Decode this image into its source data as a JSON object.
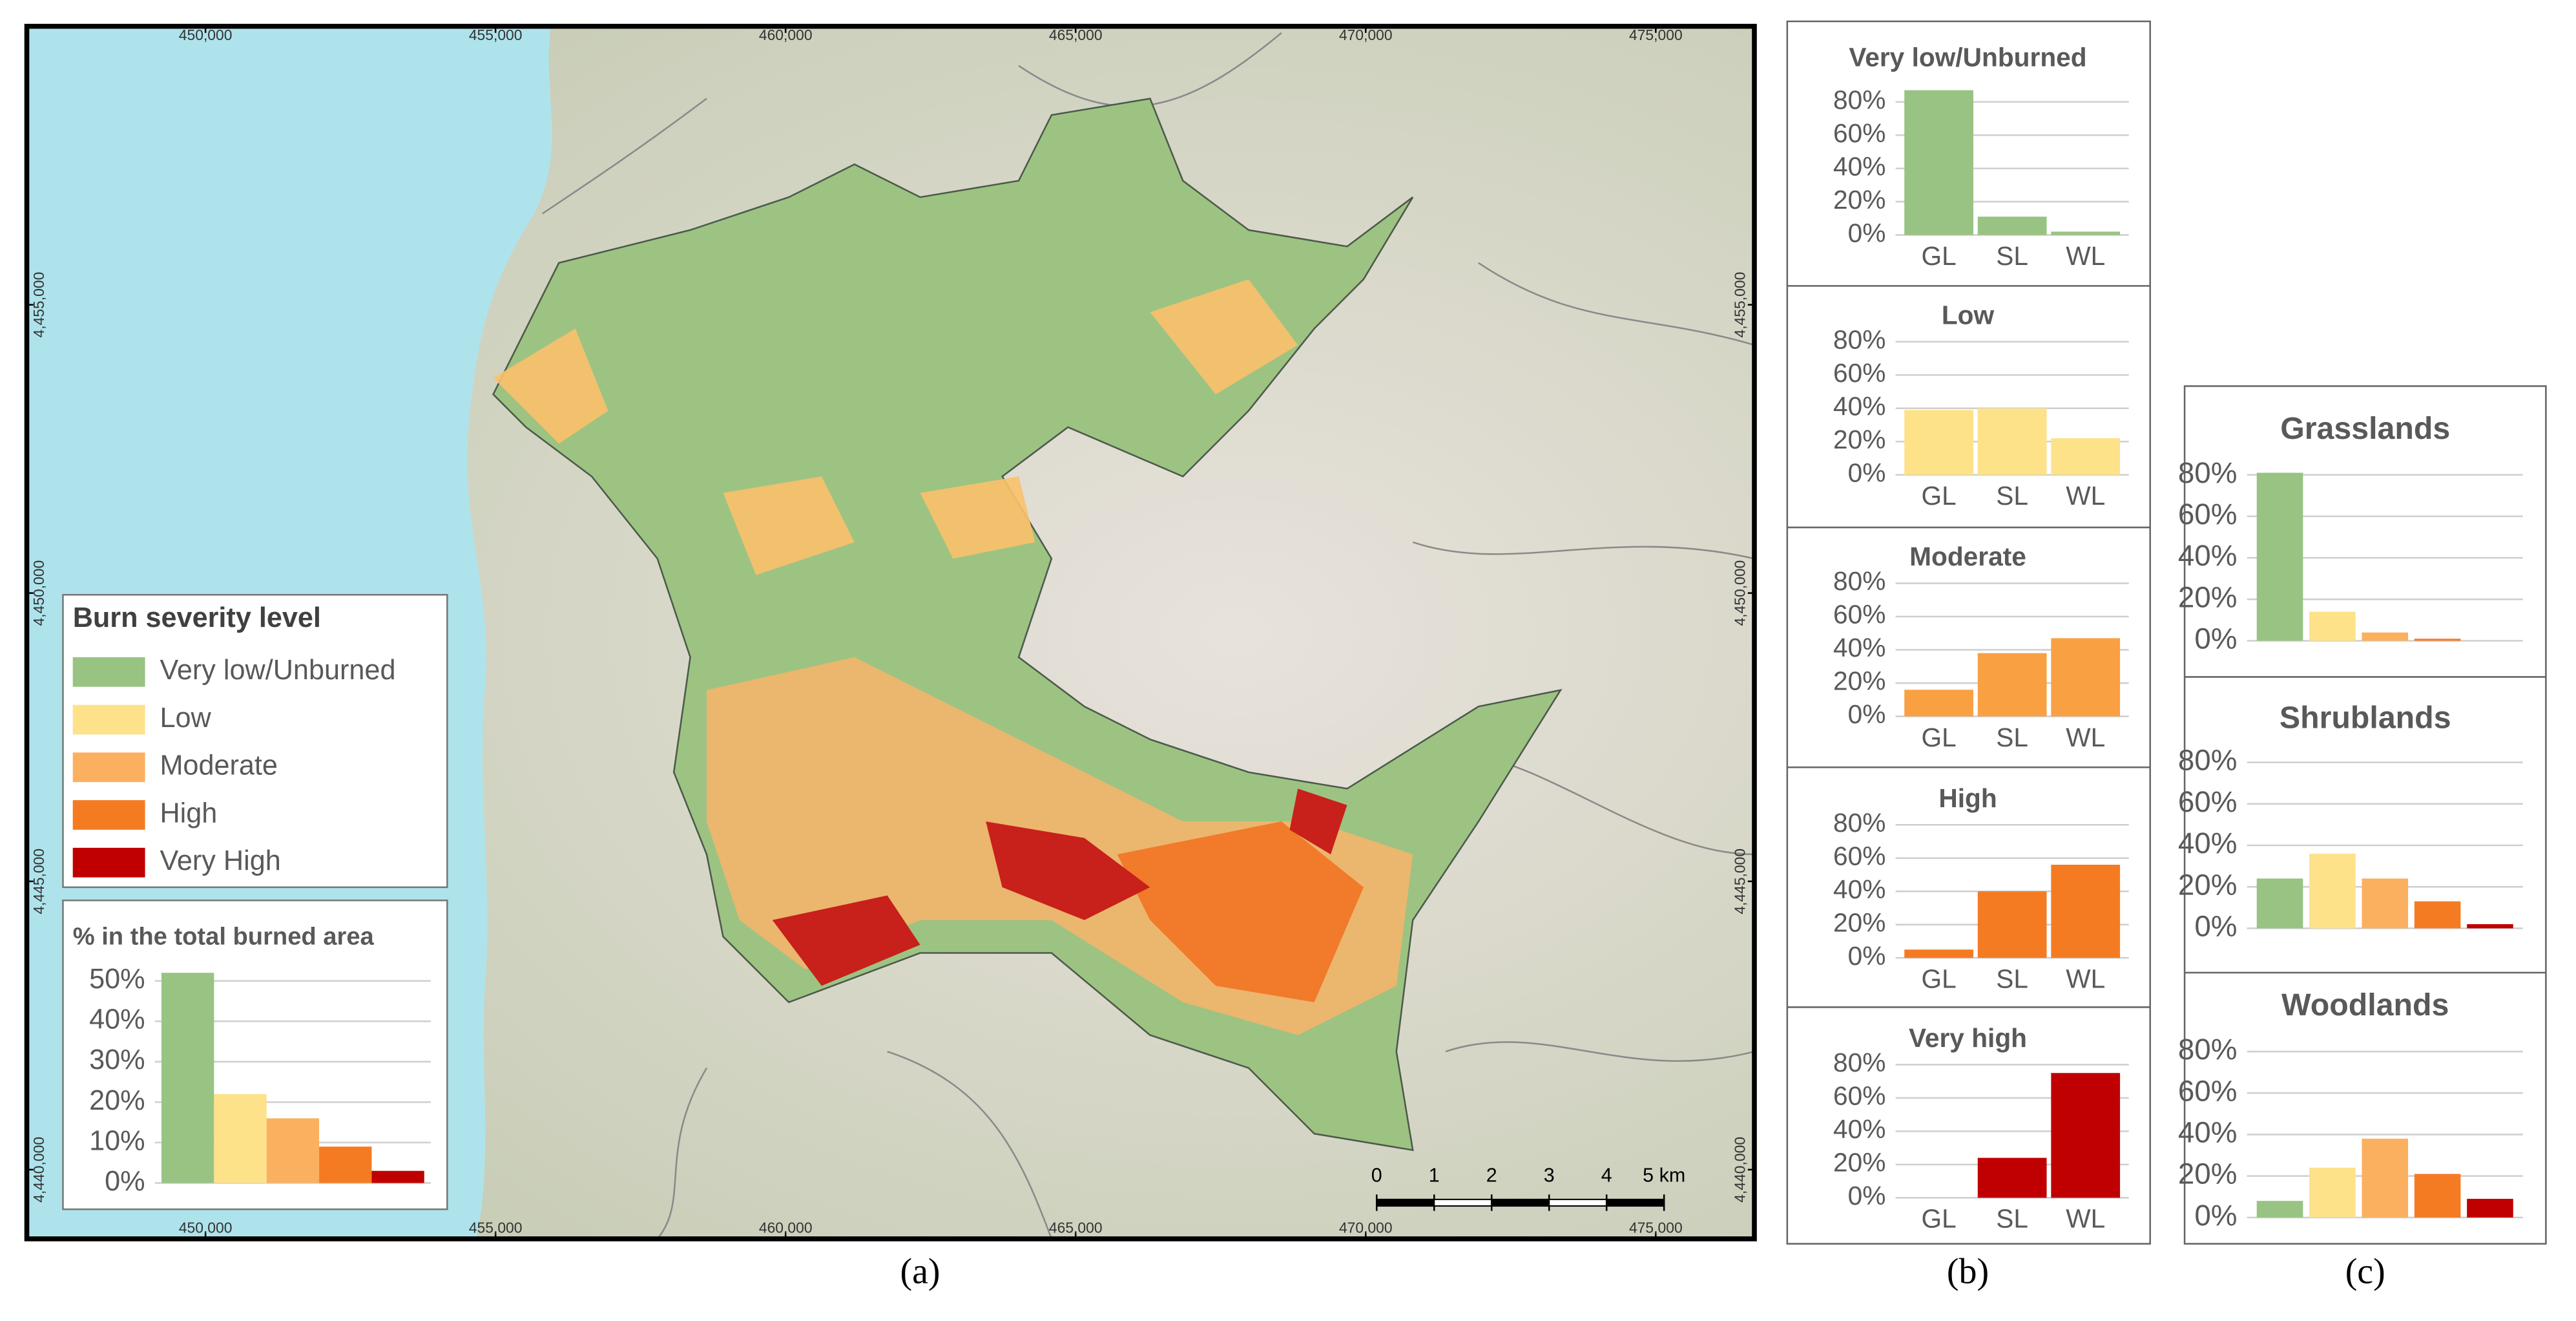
{
  "map": {
    "xlim": [
      446920,
      476700
    ],
    "ylim": [
      4438800,
      4459830
    ],
    "xticks": [
      {
        "value": 450000,
        "label": "450,000"
      },
      {
        "value": 455000,
        "label": "455,000"
      },
      {
        "value": 460000,
        "label": "460,000"
      },
      {
        "value": 465000,
        "label": "465,000"
      },
      {
        "value": 470000,
        "label": "470,000"
      },
      {
        "value": 475000,
        "label": "475,000"
      }
    ],
    "yticks": [
      {
        "value": 4440000,
        "label": "4,440,000"
      },
      {
        "value": 4445000,
        "label": "4,445,000"
      },
      {
        "value": 4450000,
        "label": "4,450,000"
      },
      {
        "value": 4455000,
        "label": "4,455,000"
      }
    ],
    "legend": {
      "title": "Burn severity level",
      "items": [
        "Very low/Unburned",
        "Low",
        "Moderate",
        "High",
        "Very High"
      ],
      "colors": [
        "#98c383",
        "#fde28a",
        "#fbb060",
        "#f57b22",
        "#c00000"
      ]
    },
    "scale_bar": {
      "ticks": [
        0,
        1,
        2,
        3,
        4,
        {
          "value": 5,
          "label": "5 km"
        }
      ]
    }
  },
  "chart_data": [
    {
      "type": "bar",
      "title": "% in the total burned area",
      "categories": [
        null,
        null,
        null,
        null,
        null
      ],
      "values": [
        52,
        22,
        16,
        9,
        3
      ],
      "colors": [
        "#98c383",
        "#fde28a",
        "#fbb060",
        "#f57b22",
        "#c00000"
      ],
      "ylim": [
        0,
        54
      ],
      "yticks": [
        {
          "value": 0,
          "label": "0%"
        },
        {
          "value": 10,
          "label": "10%"
        },
        {
          "value": 20,
          "label": "20%"
        },
        {
          "value": 30,
          "label": "30%"
        },
        {
          "value": 40,
          "label": "40%"
        },
        {
          "value": 50,
          "label": "50%"
        }
      ],
      "grid": true
    },
    {
      "type": "bar",
      "title": "Very low/Unburned",
      "categories": [
        "GL",
        "SL",
        "WL"
      ],
      "values": [
        87,
        11,
        2
      ],
      "color": "#98c383",
      "ylim": [
        0,
        90
      ],
      "yticks": [
        {
          "value": 0,
          "label": "0%"
        },
        {
          "value": 20,
          "label": "20%"
        },
        {
          "value": 40,
          "label": "40%"
        },
        {
          "value": 60,
          "label": "60%"
        },
        {
          "value": 80,
          "label": "80%"
        }
      ],
      "grid": true
    },
    {
      "type": "bar",
      "title": "Low",
      "categories": [
        "GL",
        "SL",
        "WL"
      ],
      "values": [
        39,
        40,
        22
      ],
      "color": "#fde28a",
      "ylim": [
        0,
        90
      ],
      "yticks": [
        {
          "value": 0,
          "label": "0%"
        },
        {
          "value": 20,
          "label": "20%"
        },
        {
          "value": 40,
          "label": "40%"
        },
        {
          "value": 60,
          "label": "60%"
        },
        {
          "value": 80,
          "label": "80%"
        }
      ],
      "grid": true
    },
    {
      "type": "bar",
      "title": "Moderate",
      "categories": [
        "GL",
        "SL",
        "WL"
      ],
      "values": [
        16,
        38,
        47
      ],
      "color": "#f9a043",
      "ylim": [
        0,
        90
      ],
      "yticks": [
        {
          "value": 0,
          "label": "0%"
        },
        {
          "value": 20,
          "label": "20%"
        },
        {
          "value": 40,
          "label": "40%"
        },
        {
          "value": 60,
          "label": "60%"
        },
        {
          "value": 80,
          "label": "80%"
        }
      ],
      "grid": true
    },
    {
      "type": "bar",
      "title": "High",
      "categories": [
        "GL",
        "SL",
        "WL"
      ],
      "values": [
        5,
        40,
        56
      ],
      "color": "#f57b22",
      "ylim": [
        0,
        90
      ],
      "yticks": [
        {
          "value": 0,
          "label": "0%"
        },
        {
          "value": 20,
          "label": "20%"
        },
        {
          "value": 40,
          "label": "40%"
        },
        {
          "value": 60,
          "label": "60%"
        },
        {
          "value": 80,
          "label": "80%"
        }
      ],
      "grid": true
    },
    {
      "type": "bar",
      "title": "Very high",
      "categories": [
        "GL",
        "SL",
        "WL"
      ],
      "values": [
        0,
        24,
        75
      ],
      "color": "#c00000",
      "ylim": [
        0,
        90
      ],
      "yticks": [
        {
          "value": 0,
          "label": "0%"
        },
        {
          "value": 20,
          "label": "20%"
        },
        {
          "value": 40,
          "label": "40%"
        },
        {
          "value": 60,
          "label": "60%"
        },
        {
          "value": 80,
          "label": "80%"
        }
      ],
      "grid": true
    },
    {
      "type": "bar",
      "title": "Grasslands",
      "categories": [
        null,
        null,
        null,
        null,
        null
      ],
      "values": [
        81,
        14,
        4,
        1,
        0
      ],
      "colors": [
        "#98c383",
        "#fde28a",
        "#fbb060",
        "#f57b22",
        "#c00000"
      ],
      "ylim": [
        0,
        85
      ],
      "yticks": [
        {
          "value": 0,
          "label": "0%"
        },
        {
          "value": 20,
          "label": "20%"
        },
        {
          "value": 40,
          "label": "40%"
        },
        {
          "value": 60,
          "label": "60%"
        },
        {
          "value": 80,
          "label": "80%"
        }
      ],
      "grid": true
    },
    {
      "type": "bar",
      "title": "Shrublands",
      "categories": [
        null,
        null,
        null,
        null,
        null
      ],
      "values": [
        24,
        36,
        24,
        13,
        2
      ],
      "colors": [
        "#98c383",
        "#fde28a",
        "#fbb060",
        "#f57b22",
        "#c00000"
      ],
      "ylim": [
        0,
        85
      ],
      "yticks": [
        {
          "value": 0,
          "label": "0%"
        },
        {
          "value": 20,
          "label": "20%"
        },
        {
          "value": 40,
          "label": "40%"
        },
        {
          "value": 60,
          "label": "60%"
        },
        {
          "value": 80,
          "label": "80%"
        }
      ],
      "grid": true
    },
    {
      "type": "bar",
      "title": "Woodlands",
      "categories": [
        null,
        null,
        null,
        null,
        null
      ],
      "values": [
        8,
        24,
        38,
        21,
        9
      ],
      "colors": [
        "#98c383",
        "#fde28a",
        "#fbb060",
        "#f57b22",
        "#c00000"
      ],
      "ylim": [
        0,
        85
      ],
      "yticks": [
        {
          "value": 0,
          "label": "0%"
        },
        {
          "value": 20,
          "label": "20%"
        },
        {
          "value": 40,
          "label": "40%"
        },
        {
          "value": 60,
          "label": "60%"
        },
        {
          "value": 80,
          "label": "80%"
        }
      ],
      "grid": true
    }
  ],
  "panel_labels": [
    "(a)",
    "(b)",
    "(c)"
  ]
}
